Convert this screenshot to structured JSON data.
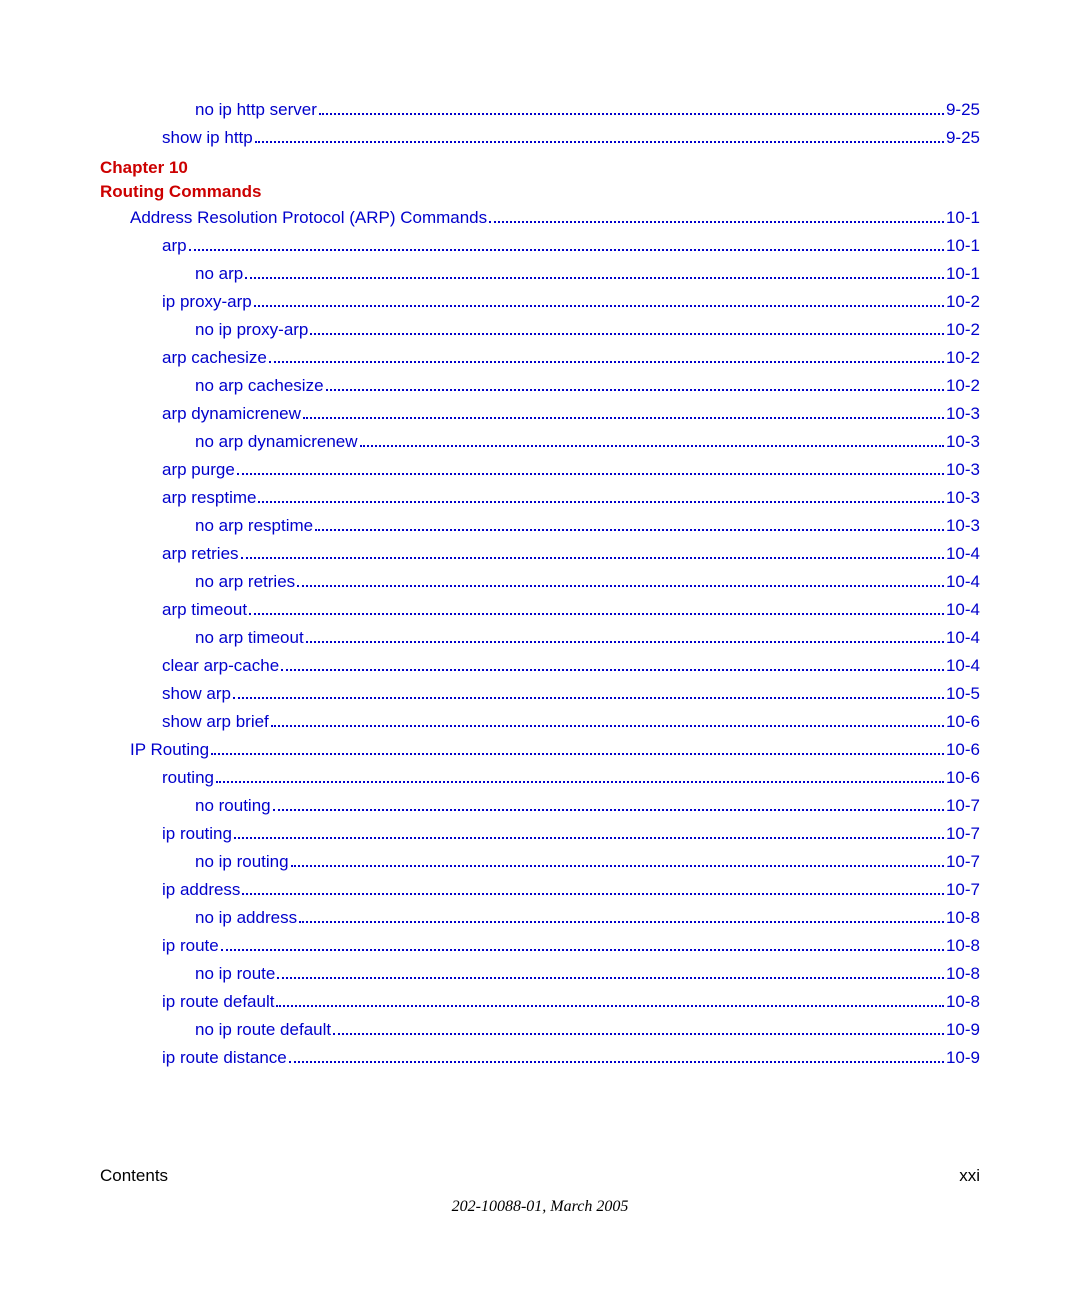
{
  "link_color": "#0000cc",
  "heading_color": "#cc0000",
  "text_color": "#000000",
  "font_size": 17,
  "pre_entries": [
    {
      "indent": 3,
      "label": "no ip http server",
      "page": "9-25"
    },
    {
      "indent": 2,
      "label": "show ip http",
      "page": "9-25"
    }
  ],
  "chapter": {
    "line1": "Chapter 10",
    "line2": "Routing Commands"
  },
  "entries": [
    {
      "indent": 1,
      "label": "Address Resolution Protocol (ARP) Commands",
      "page": "10-1"
    },
    {
      "indent": 2,
      "label": "arp",
      "page": "10-1"
    },
    {
      "indent": 3,
      "label": "no arp",
      "page": "10-1"
    },
    {
      "indent": 2,
      "label": "ip proxy-arp",
      "page": "10-2"
    },
    {
      "indent": 3,
      "label": "no ip proxy-arp",
      "page": "10-2"
    },
    {
      "indent": 2,
      "label": "arp cachesize",
      "page": "10-2"
    },
    {
      "indent": 3,
      "label": "no arp cachesize",
      "page": "10-2"
    },
    {
      "indent": 2,
      "label": "arp dynamicrenew",
      "page": "10-3"
    },
    {
      "indent": 3,
      "label": "no arp dynamicrenew",
      "page": "10-3"
    },
    {
      "indent": 2,
      "label": "arp purge",
      "page": "10-3"
    },
    {
      "indent": 2,
      "label": "arp resptime",
      "page": "10-3"
    },
    {
      "indent": 3,
      "label": "no arp resptime",
      "page": "10-3"
    },
    {
      "indent": 2,
      "label": "arp retries",
      "page": "10-4"
    },
    {
      "indent": 3,
      "label": "no arp retries",
      "page": "10-4"
    },
    {
      "indent": 2,
      "label": "arp timeout",
      "page": "10-4"
    },
    {
      "indent": 3,
      "label": "no arp timeout",
      "page": "10-4"
    },
    {
      "indent": 2,
      "label": "clear arp-cache",
      "page": "10-4"
    },
    {
      "indent": 2,
      "label": "show arp",
      "page": "10-5"
    },
    {
      "indent": 2,
      "label": "show arp brief",
      "page": "10-6"
    },
    {
      "indent": 1,
      "label": "IP Routing",
      "page": "10-6"
    },
    {
      "indent": 2,
      "label": "routing",
      "page": "10-6"
    },
    {
      "indent": 3,
      "label": "no routing",
      "page": "10-7"
    },
    {
      "indent": 2,
      "label": "ip routing",
      "page": "10-7"
    },
    {
      "indent": 3,
      "label": "no ip routing",
      "page": "10-7"
    },
    {
      "indent": 2,
      "label": "ip address",
      "page": "10-7"
    },
    {
      "indent": 3,
      "label": "no ip address",
      "page": "10-8"
    },
    {
      "indent": 2,
      "label": "ip route",
      "page": "10-8"
    },
    {
      "indent": 3,
      "label": "no ip route",
      "page": "10-8"
    },
    {
      "indent": 2,
      "label": "ip route default",
      "page": "10-8"
    },
    {
      "indent": 3,
      "label": "no ip route default",
      "page": "10-9"
    },
    {
      "indent": 2,
      "label": "ip route distance",
      "page": "10-9"
    }
  ],
  "footer": {
    "left": "Contents",
    "right": "xxi",
    "center": "202-10088-01, March 2005"
  }
}
